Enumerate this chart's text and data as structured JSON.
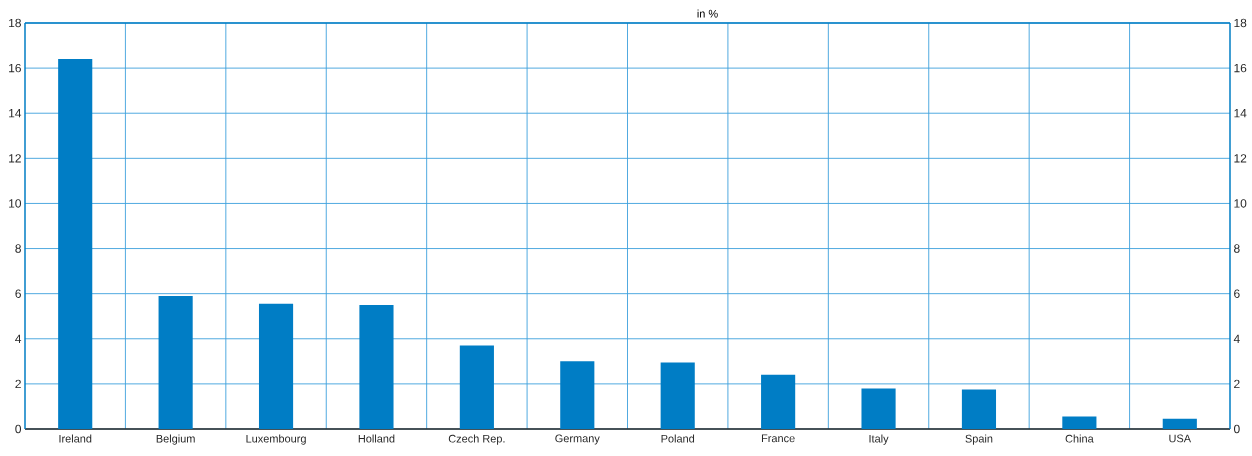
{
  "chart_data": {
    "type": "bar",
    "subtitle": "in %",
    "categories": [
      "Ireland",
      "Belgium",
      "Luxembourg",
      "Holland",
      "Czech Rep.",
      "Germany",
      "Poland",
      "France",
      "Italy",
      "Spain",
      "China",
      "USA"
    ],
    "values": [
      16.4,
      5.9,
      5.55,
      5.5,
      3.7,
      3.0,
      2.95,
      2.4,
      1.8,
      1.75,
      0.55,
      0.45
    ],
    "color": "#007dc5",
    "ylim": [
      0,
      18
    ],
    "yticks": [
      0,
      2,
      4,
      6,
      8,
      10,
      12,
      14,
      16,
      18
    ],
    "y2lim": [
      0,
      18
    ],
    "y2ticks": [
      0,
      2,
      4,
      6,
      8,
      10,
      12,
      14,
      16,
      18
    ],
    "grid": true
  }
}
